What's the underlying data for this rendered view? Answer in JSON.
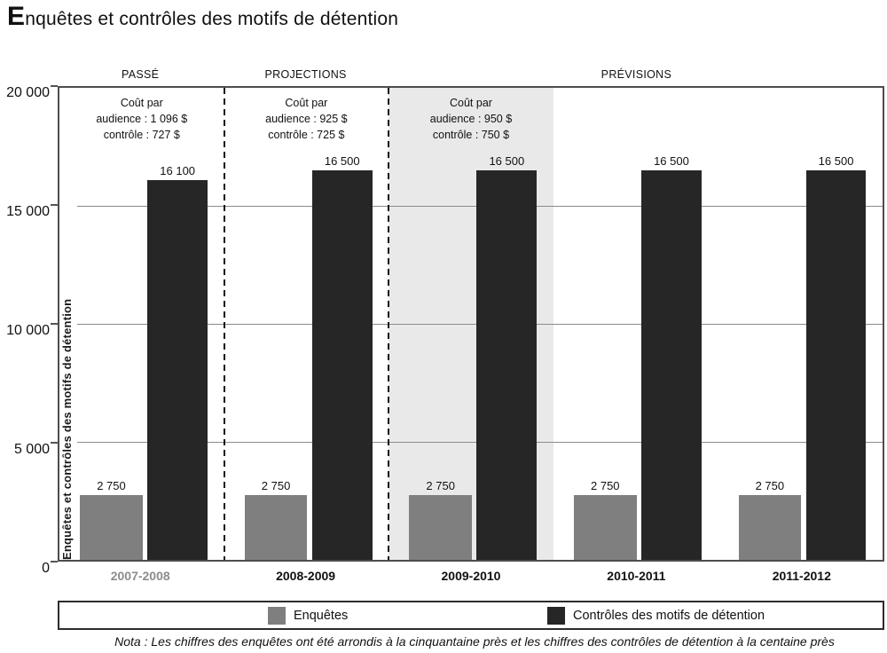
{
  "title": {
    "first_letter": "E",
    "rest": "nquêtes et contrôles des motifs de détention"
  },
  "note": "Nota : Les chiffres des enquêtes ont été arrondis à la cinquantaine près et les chiffres des contrôles de détention à la centaine près",
  "colors": {
    "enquetes_bar": "#7f7f7f",
    "controles_bar": "#262626",
    "highlight_band": "#e9e9e9",
    "past_year_label": "#8c8c8c"
  },
  "chart_data": {
    "type": "bar",
    "title": "Enquêtes et contrôles des motifs de détention",
    "ylabel": "Enquêtes et contrôles des motifs de détention",
    "xlabel": "",
    "ylim": [
      0,
      20000
    ],
    "ytick_labels": [
      "20 000",
      "15 000",
      "10 000",
      "5 000",
      "0"
    ],
    "ytick_values": [
      20000,
      15000,
      10000,
      5000,
      0
    ],
    "grid": true,
    "legend_position": "bottom",
    "categories": [
      "2007-2008",
      "2008-2009",
      "2009-2010",
      "2010-2011",
      "2011-2012"
    ],
    "muted_categories": [
      "2007-2008"
    ],
    "highlighted_category": "2009-2010",
    "series": [
      {
        "name": "Enquêtes",
        "color": "#7f7f7f",
        "values": [
          2750,
          2750,
          2750,
          2750,
          2750
        ],
        "value_labels": [
          "2 750",
          "2 750",
          "2 750",
          "2 750",
          "2 750"
        ]
      },
      {
        "name": "Contrôles des motifs de détention",
        "color": "#262626",
        "values": [
          16100,
          16500,
          16500,
          16500,
          16500
        ],
        "value_labels": [
          "16 100",
          "16 500",
          "16 500",
          "16 500",
          "16 500"
        ]
      }
    ],
    "sections": [
      {
        "label": "PASSÉ",
        "span": [
          0,
          1
        ]
      },
      {
        "label": "PROJECTIONS",
        "span": [
          1,
          2
        ]
      },
      {
        "label": "PRÉVISIONS",
        "span": [
          2,
          5
        ]
      }
    ],
    "annotations": [
      {
        "category": "2007-2008",
        "lines": [
          "Coût par",
          "audience : 1 096 $",
          "contrôle : 727 $"
        ]
      },
      {
        "category": "2008-2009",
        "lines": [
          "Coût par",
          "audience : 925 $",
          "contrôle : 725 $"
        ]
      },
      {
        "category": "2009-2010",
        "lines": [
          "Coût par",
          "audience : 950 $",
          "contrôle : 750 $"
        ]
      }
    ]
  },
  "legend": {
    "items": [
      {
        "label": "Enquêtes",
        "color": "#7f7f7f"
      },
      {
        "label": "Contrôles des motifs de détention",
        "color": "#262626"
      }
    ]
  }
}
